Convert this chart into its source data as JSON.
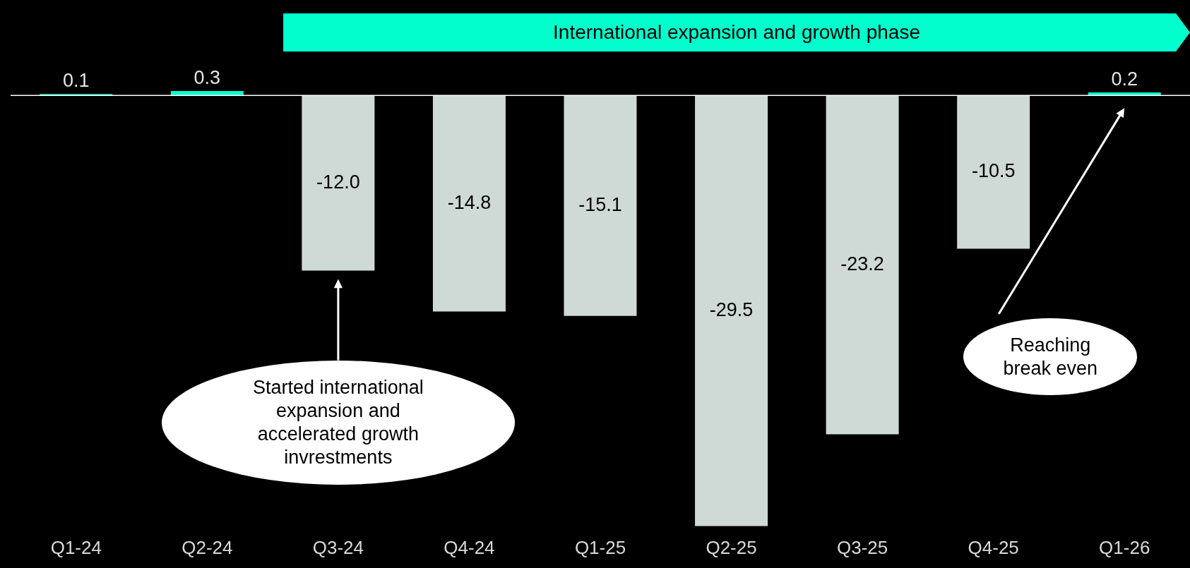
{
  "chart_data": {
    "type": "bar",
    "categories": [
      "Q1-24",
      "Q2-24",
      "Q3-24",
      "Q4-24",
      "Q1-25",
      "Q2-25",
      "Q3-25",
      "Q4-25",
      "Q1-26"
    ],
    "values": [
      0.1,
      0.3,
      -12.0,
      -14.8,
      -15.1,
      -29.5,
      -23.2,
      -10.5,
      0.2
    ],
    "colors": [
      "#00ffcc",
      "#00ffcc",
      "#cfd9d6",
      "#cfd9d6",
      "#cfd9d6",
      "#cfd9d6",
      "#cfd9d6",
      "#cfd9d6",
      "#00ffcc"
    ],
    "value_labels": [
      "0.1",
      "0.3",
      "-12.0",
      "-14.8",
      "-15.1",
      "-29.5",
      "-23.2",
      "-10.5",
      "0.2"
    ],
    "annotations": [
      "International expansion and growth phase",
      "Started international expansion and accelerated growth invrestments",
      "Reaching break even"
    ],
    "tick_labels": "x",
    "legend": false
  }
}
